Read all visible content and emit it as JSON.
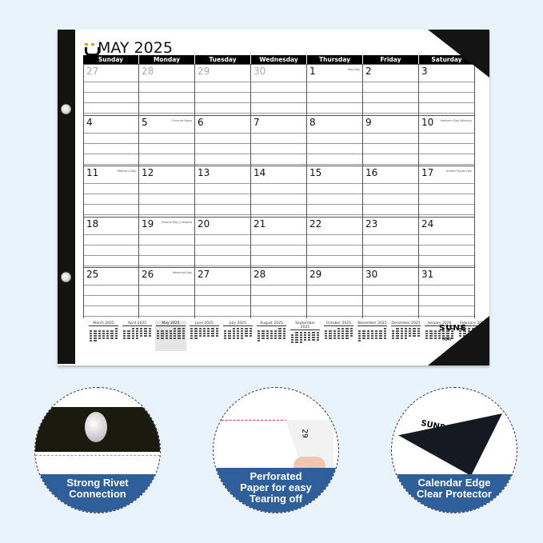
{
  "calendar": {
    "title": "MAY 2025",
    "weekdays": [
      "Sunday",
      "Monday",
      "Tuesday",
      "Wednesday",
      "Thursday",
      "Friday",
      "Saturday"
    ],
    "weeks": [
      [
        {
          "d": "27",
          "prev": true
        },
        {
          "d": "28",
          "prev": true
        },
        {
          "d": "29",
          "prev": true
        },
        {
          "d": "30",
          "prev": true
        },
        {
          "d": "1",
          "note": "May Day"
        },
        {
          "d": "2"
        },
        {
          "d": "3"
        }
      ],
      [
        {
          "d": "4"
        },
        {
          "d": "5",
          "note": "Cinco de Mayo"
        },
        {
          "d": "6"
        },
        {
          "d": "7"
        },
        {
          "d": "8"
        },
        {
          "d": "9"
        },
        {
          "d": "10",
          "note": "Mother's Day (Mexico)"
        }
      ],
      [
        {
          "d": "11",
          "note": "Mother's Day"
        },
        {
          "d": "12"
        },
        {
          "d": "13"
        },
        {
          "d": "14"
        },
        {
          "d": "15"
        },
        {
          "d": "16"
        },
        {
          "d": "17",
          "note": "Armed Forces Day"
        }
      ],
      [
        {
          "d": "18"
        },
        {
          "d": "19",
          "note": "Victoria Day (Canada)"
        },
        {
          "d": "20"
        },
        {
          "d": "21"
        },
        {
          "d": "22"
        },
        {
          "d": "23"
        },
        {
          "d": "24"
        }
      ],
      [
        {
          "d": "25"
        },
        {
          "d": "26",
          "note": "Memorial Day"
        },
        {
          "d": "27"
        },
        {
          "d": "28"
        },
        {
          "d": "29"
        },
        {
          "d": "30"
        },
        {
          "d": "31"
        }
      ]
    ],
    "mini_months": [
      {
        "name": "March 2025",
        "start": 6,
        "days": 31
      },
      {
        "name": "April 2025",
        "start": 2,
        "days": 30
      },
      {
        "name": "May 2025",
        "start": 4,
        "days": 31,
        "current": true
      },
      {
        "name": "June 2025",
        "start": 0,
        "days": 30
      },
      {
        "name": "July 2025",
        "start": 2,
        "days": 31
      },
      {
        "name": "August 2025",
        "start": 5,
        "days": 31
      },
      {
        "name": "September 2025",
        "start": 1,
        "days": 30
      },
      {
        "name": "October 2025",
        "start": 3,
        "days": 31
      },
      {
        "name": "November 2025",
        "start": 6,
        "days": 30
      },
      {
        "name": "December 2025",
        "start": 1,
        "days": 31
      },
      {
        "name": "January 2026",
        "start": 4,
        "days": 31
      },
      {
        "name": "February 2026",
        "start": 0,
        "days": 28
      }
    ],
    "brand": "SUNE",
    "brand_sub": "MAY"
  },
  "features": [
    {
      "lines": [
        "Strong Rivet",
        "Connection"
      ]
    },
    {
      "lines": [
        "Perforated",
        "Paper for easy",
        "Tearing off"
      ]
    },
    {
      "lines": [
        "Calendar Edge",
        "Clear Protector"
      ]
    }
  ],
  "colors": {
    "accent_blue": "#2e5f9a",
    "background": "#e8f3fb",
    "logo_gold": "#d9a21b"
  }
}
